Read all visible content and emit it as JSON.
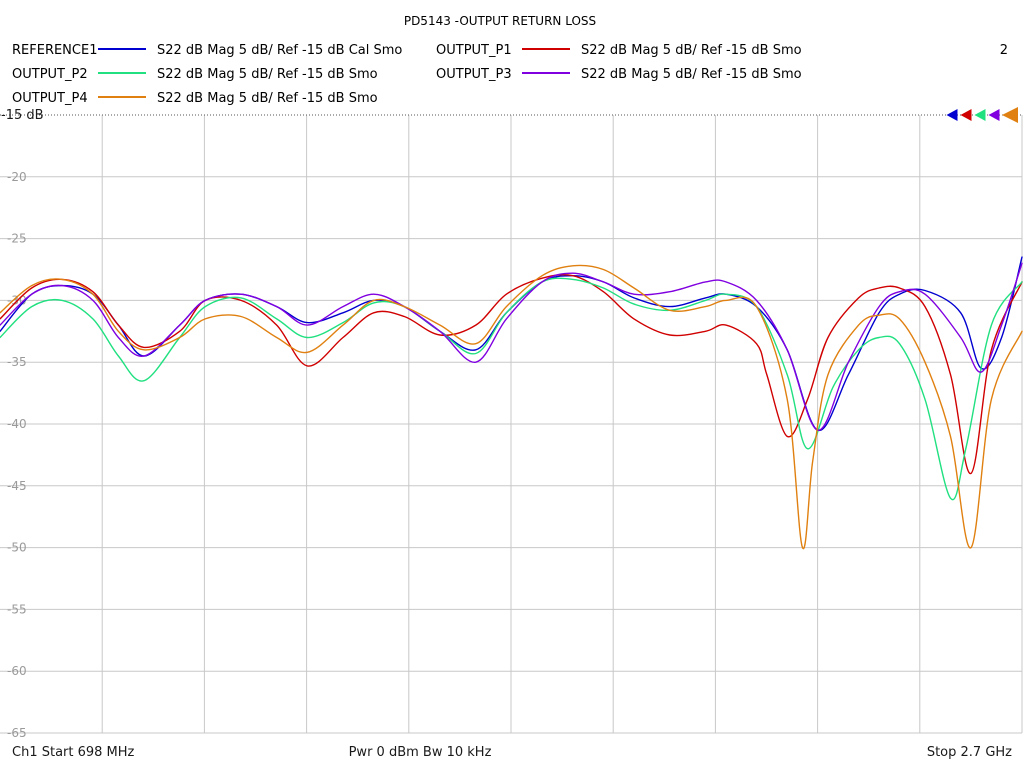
{
  "chart_data": {
    "type": "line",
    "title": "PD5143 -OUTPUT RETURN LOSS",
    "window_number": "2",
    "x_range_mhz": [
      698,
      2700
    ],
    "ylim": [
      -65,
      -15
    ],
    "y_ticks": [
      -20,
      -25,
      -30,
      -35,
      -40,
      -45,
      -50,
      -55,
      -60,
      -65
    ],
    "y_ref_label": "-15 dB",
    "grid": true,
    "legend_position": "top",
    "footer": {
      "start": "Ch1  Start  698 MHz",
      "center": "Pwr  0 dBm  Bw  10 kHz",
      "stop": "Stop  2.7 GHz"
    },
    "series": [
      {
        "name": "REFERENCE1",
        "desc": "S22  dB Mag  5 dB/ Ref -15 dB  Cal Smo",
        "color": "#0000d0",
        "x": [
          698,
          760,
          820,
          880,
          930,
          980,
          1050,
          1100,
          1170,
          1240,
          1300,
          1370,
          1430,
          1490,
          1560,
          1630,
          1690,
          1760,
          1820,
          1880,
          1940,
          2010,
          2080,
          2120,
          2180,
          2240,
          2300,
          2360,
          2420,
          2460,
          2510,
          2580,
          2620,
          2660,
          2700
        ],
        "y": [
          -32.5,
          -29.5,
          -28.8,
          -29.5,
          -32.0,
          -34.5,
          -32.0,
          -30.0,
          -29.5,
          -30.5,
          -31.8,
          -31.0,
          -30.0,
          -30.5,
          -32.5,
          -34.0,
          -31.0,
          -28.5,
          -28.0,
          -28.5,
          -29.8,
          -30.5,
          -29.8,
          -29.5,
          -30.5,
          -34.0,
          -40.5,
          -36.0,
          -31.0,
          -29.5,
          -29.2,
          -31.0,
          -35.5,
          -33.0,
          -26.5
        ]
      },
      {
        "name": "OUTPUT_P1",
        "desc": "S22  dB Mag  5 dB/ Ref -15 dB  Smo",
        "color": "#d00000",
        "x": [
          698,
          760,
          820,
          880,
          930,
          980,
          1050,
          1100,
          1170,
          1240,
          1300,
          1370,
          1430,
          1490,
          1560,
          1630,
          1690,
          1760,
          1820,
          1880,
          1940,
          2010,
          2080,
          2120,
          2180,
          2200,
          2240,
          2280,
          2320,
          2380,
          2420,
          2460,
          2510,
          2560,
          2600,
          2640,
          2700
        ],
        "y": [
          -31.5,
          -29.0,
          -28.3,
          -29.3,
          -32.0,
          -33.8,
          -32.5,
          -30.0,
          -30.0,
          -32.0,
          -35.3,
          -33.0,
          -31.0,
          -31.3,
          -32.8,
          -32.0,
          -29.5,
          -28.2,
          -28.0,
          -29.3,
          -31.5,
          -32.8,
          -32.5,
          -32.0,
          -33.5,
          -36.0,
          -41.0,
          -38.0,
          -33.0,
          -29.8,
          -29.0,
          -29.0,
          -30.5,
          -36.0,
          -44.0,
          -34.0,
          -28.5
        ]
      },
      {
        "name": "OUTPUT_P2",
        "desc": "S22  dB Mag  5 dB/ Ref -15 dB  Smo",
        "color": "#20e080",
        "x": [
          698,
          760,
          820,
          880,
          930,
          980,
          1050,
          1100,
          1170,
          1240,
          1300,
          1370,
          1430,
          1490,
          1560,
          1630,
          1690,
          1760,
          1820,
          1880,
          1940,
          2010,
          2080,
          2120,
          2180,
          2240,
          2280,
          2330,
          2380,
          2420,
          2460,
          2510,
          2560,
          2590,
          2640,
          2700
        ],
        "y": [
          -33.0,
          -30.5,
          -30.0,
          -31.5,
          -34.5,
          -36.5,
          -33.0,
          -30.5,
          -29.8,
          -31.5,
          -33.0,
          -31.8,
          -30.2,
          -30.5,
          -32.5,
          -34.3,
          -31.0,
          -28.5,
          -28.3,
          -29.0,
          -30.3,
          -30.8,
          -30.0,
          -29.5,
          -30.5,
          -36.0,
          -42.0,
          -37.0,
          -34.0,
          -33.0,
          -33.5,
          -38.0,
          -46.0,
          -42.0,
          -32.0,
          -28.5
        ]
      },
      {
        "name": "OUTPUT_P3",
        "desc": "S22  dB Mag  5 dB/ Ref -15 dB  Smo",
        "color": "#8000e0",
        "x": [
          698,
          760,
          820,
          880,
          930,
          980,
          1050,
          1100,
          1170,
          1240,
          1300,
          1370,
          1430,
          1490,
          1560,
          1630,
          1690,
          1760,
          1820,
          1880,
          1940,
          2010,
          2080,
          2120,
          2180,
          2240,
          2300,
          2360,
          2420,
          2460,
          2510,
          2580,
          2620,
          2660,
          2700
        ],
        "y": [
          -32.0,
          -29.5,
          -28.8,
          -30.0,
          -33.0,
          -34.5,
          -32.0,
          -30.0,
          -29.5,
          -30.5,
          -32.0,
          -30.5,
          -29.5,
          -30.5,
          -32.5,
          -35.0,
          -31.5,
          -28.5,
          -27.8,
          -28.5,
          -29.5,
          -29.3,
          -28.5,
          -28.5,
          -30.0,
          -34.0,
          -40.5,
          -35.0,
          -30.5,
          -29.3,
          -29.5,
          -33.0,
          -35.8,
          -32.0,
          -27.0
        ]
      },
      {
        "name": "OUTPUT_P4",
        "desc": "S22  dB Mag  5 dB/ Ref -15 dB  Smo",
        "color": "#e08010",
        "x": [
          698,
          760,
          820,
          880,
          930,
          980,
          1050,
          1100,
          1170,
          1240,
          1300,
          1370,
          1430,
          1490,
          1560,
          1630,
          1690,
          1760,
          1820,
          1880,
          1940,
          2010,
          2080,
          2120,
          2180,
          2240,
          2270,
          2290,
          2320,
          2380,
          2420,
          2460,
          2510,
          2560,
          2600,
          2640,
          2700
        ],
        "y": [
          -31.0,
          -28.8,
          -28.3,
          -29.5,
          -32.5,
          -34.0,
          -33.0,
          -31.5,
          -31.3,
          -33.0,
          -34.2,
          -32.0,
          -30.0,
          -30.5,
          -32.0,
          -33.5,
          -30.5,
          -28.0,
          -27.2,
          -27.5,
          -29.0,
          -30.8,
          -30.5,
          -30.0,
          -30.5,
          -38.0,
          -50.0,
          -43.0,
          -36.0,
          -32.0,
          -31.2,
          -31.5,
          -35.0,
          -41.0,
          -50.0,
          -38.0,
          -32.5
        ]
      }
    ]
  }
}
